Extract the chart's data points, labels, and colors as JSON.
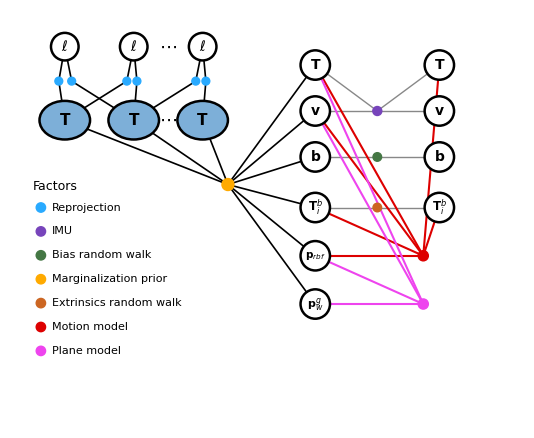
{
  "bg_color": "#ffffff",
  "node_color_T_blue": "#7dafd8",
  "node_color_white": "#ffffff",
  "node_edge_color": "#000000",
  "factor_colors": {
    "reprojection": "#29aaff",
    "imu": "#7744bb",
    "bias_rw": "#447744",
    "marginalization": "#ffaa00",
    "extrinsics_rw": "#cc6622",
    "motion": "#dd0000",
    "plane": "#ee44ee"
  },
  "legend_labels": [
    "Reprojection",
    "IMU",
    "Bias random walk",
    "Marginalization prior",
    "Extrinsics random walk",
    "Motion model",
    "Plane model"
  ],
  "legend_colors": [
    "#29aaff",
    "#7744bb",
    "#447744",
    "#ffaa00",
    "#cc6622",
    "#dd0000",
    "#ee44ee"
  ],
  "xlim": [
    0,
    10.5
  ],
  "ylim": [
    0,
    9.5
  ]
}
